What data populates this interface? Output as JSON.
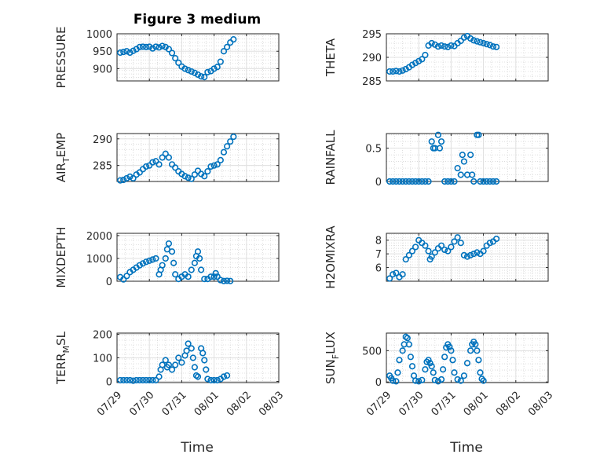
{
  "figure": {
    "title": "Figure 3 medium",
    "xlabel": "Time",
    "marker_color": "#0072BD"
  },
  "chart_data": [
    {
      "type": "scatter",
      "ylabel": "PRESSURE",
      "ylim": [
        865,
        1000
      ],
      "yticks": [
        900,
        950,
        1000
      ],
      "x_range": [
        "07/29",
        "08/03"
      ],
      "grid": true,
      "points": [
        [
          0.1,
          946
        ],
        [
          0.2,
          948
        ],
        [
          0.3,
          950
        ],
        [
          0.4,
          946
        ],
        [
          0.5,
          951
        ],
        [
          0.6,
          956
        ],
        [
          0.7,
          962
        ],
        [
          0.8,
          963
        ],
        [
          0.9,
          962
        ],
        [
          1.0,
          963
        ],
        [
          1.1,
          958
        ],
        [
          1.2,
          963
        ],
        [
          1.3,
          961
        ],
        [
          1.4,
          965
        ],
        [
          1.5,
          962
        ],
        [
          1.6,
          956
        ],
        [
          1.7,
          945
        ],
        [
          1.8,
          930
        ],
        [
          1.9,
          917
        ],
        [
          2.0,
          906
        ],
        [
          2.1,
          900
        ],
        [
          2.2,
          896
        ],
        [
          2.3,
          892
        ],
        [
          2.4,
          888
        ],
        [
          2.5,
          883
        ],
        [
          2.6,
          878
        ],
        [
          2.7,
          876
        ],
        [
          2.8,
          890
        ],
        [
          2.9,
          893
        ],
        [
          3.0,
          900
        ],
        [
          3.1,
          905
        ],
        [
          3.2,
          920
        ],
        [
          3.3,
          950
        ],
        [
          3.4,
          962
        ],
        [
          3.5,
          975
        ],
        [
          3.6,
          984
        ]
      ]
    },
    {
      "type": "scatter",
      "ylabel": "THETA",
      "ylim": [
        285,
        295
      ],
      "yticks": [
        285,
        290,
        295
      ],
      "x_range": [
        "07/29",
        "08/03"
      ],
      "grid": true,
      "points": [
        [
          0.1,
          287.0
        ],
        [
          0.2,
          287.0
        ],
        [
          0.3,
          287.1
        ],
        [
          0.4,
          287.0
        ],
        [
          0.5,
          287.2
        ],
        [
          0.6,
          287.5
        ],
        [
          0.7,
          287.9
        ],
        [
          0.8,
          288.4
        ],
        [
          0.9,
          288.8
        ],
        [
          1.0,
          289.2
        ],
        [
          1.1,
          289.6
        ],
        [
          1.2,
          290.5
        ],
        [
          1.3,
          292.5
        ],
        [
          1.4,
          293.0
        ],
        [
          1.5,
          292.7
        ],
        [
          1.6,
          292.3
        ],
        [
          1.7,
          292.5
        ],
        [
          1.8,
          292.3
        ],
        [
          1.9,
          292.2
        ],
        [
          2.0,
          292.5
        ],
        [
          2.1,
          292.4
        ],
        [
          2.2,
          293.0
        ],
        [
          2.3,
          293.5
        ],
        [
          2.4,
          294.2
        ],
        [
          2.5,
          294.5
        ],
        [
          2.6,
          294.0
        ],
        [
          2.7,
          293.6
        ],
        [
          2.8,
          293.4
        ],
        [
          2.9,
          293.2
        ],
        [
          3.0,
          293.0
        ],
        [
          3.1,
          292.8
        ],
        [
          3.2,
          292.6
        ],
        [
          3.3,
          292.3
        ],
        [
          3.4,
          292.2
        ]
      ]
    },
    {
      "type": "scatter",
      "ylabel": "AIR_TEMP",
      "ylim": [
        282,
        291
      ],
      "yticks": [
        285,
        290
      ],
      "x_range": [
        "07/29",
        "08/03"
      ],
      "grid": true,
      "points": [
        [
          0.1,
          282.2
        ],
        [
          0.2,
          282.3
        ],
        [
          0.3,
          282.6
        ],
        [
          0.4,
          282.9
        ],
        [
          0.5,
          282.6
        ],
        [
          0.6,
          283.3
        ],
        [
          0.7,
          283.7
        ],
        [
          0.8,
          284.3
        ],
        [
          0.9,
          284.8
        ],
        [
          1.0,
          285.0
        ],
        [
          1.1,
          285.6
        ],
        [
          1.2,
          285.8
        ],
        [
          1.3,
          285.2
        ],
        [
          1.4,
          286.5
        ],
        [
          1.5,
          287.2
        ],
        [
          1.6,
          286.5
        ],
        [
          1.7,
          285.2
        ],
        [
          1.8,
          284.6
        ],
        [
          1.9,
          283.9
        ],
        [
          2.0,
          283.4
        ],
        [
          2.1,
          283.0
        ],
        [
          2.2,
          282.7
        ],
        [
          2.3,
          282.5
        ],
        [
          2.4,
          283.3
        ],
        [
          2.5,
          284.0
        ],
        [
          2.6,
          283.4
        ],
        [
          2.7,
          283.0
        ],
        [
          2.8,
          283.9
        ],
        [
          2.9,
          284.8
        ],
        [
          3.0,
          285.0
        ],
        [
          3.1,
          285.2
        ],
        [
          3.2,
          286.0
        ],
        [
          3.3,
          287.5
        ],
        [
          3.4,
          288.6
        ],
        [
          3.5,
          289.5
        ],
        [
          3.6,
          290.4
        ]
      ]
    },
    {
      "type": "scatter",
      "ylabel": "RAINFALL",
      "ylim": [
        0,
        0.72
      ],
      "yticks": [
        0,
        0.5
      ],
      "x_range": [
        "07/29",
        "08/03"
      ],
      "grid": true,
      "points": [
        [
          0.1,
          0
        ],
        [
          0.2,
          0
        ],
        [
          0.3,
          0
        ],
        [
          0.4,
          0
        ],
        [
          0.5,
          0
        ],
        [
          0.6,
          0
        ],
        [
          0.7,
          0
        ],
        [
          0.8,
          0
        ],
        [
          0.9,
          0
        ],
        [
          1.0,
          0
        ],
        [
          1.1,
          0
        ],
        [
          1.2,
          0
        ],
        [
          1.3,
          0
        ],
        [
          1.4,
          0.6
        ],
        [
          1.45,
          0.5
        ],
        [
          1.5,
          0.5
        ],
        [
          1.6,
          0.7
        ],
        [
          1.65,
          0.5
        ],
        [
          1.7,
          0.6
        ],
        [
          1.8,
          0
        ],
        [
          1.9,
          0
        ],
        [
          2.0,
          0
        ],
        [
          2.1,
          0
        ],
        [
          2.2,
          0.2
        ],
        [
          2.3,
          0.1
        ],
        [
          2.35,
          0.4
        ],
        [
          2.4,
          0.3
        ],
        [
          2.5,
          0.1
        ],
        [
          2.6,
          0.4
        ],
        [
          2.65,
          0.1
        ],
        [
          2.7,
          0
        ],
        [
          2.8,
          0.7
        ],
        [
          2.85,
          0.7
        ],
        [
          2.9,
          0
        ],
        [
          3.0,
          0
        ],
        [
          3.1,
          0
        ],
        [
          3.2,
          0
        ],
        [
          3.3,
          0
        ],
        [
          3.4,
          0
        ]
      ]
    },
    {
      "type": "scatter",
      "ylabel": "MIXDEPTH",
      "ylim": [
        0,
        2100
      ],
      "yticks": [
        0,
        1000,
        2000
      ],
      "x_range": [
        "07/29",
        "08/03"
      ],
      "grid": true,
      "points": [
        [
          0.1,
          180
        ],
        [
          0.2,
          80
        ],
        [
          0.3,
          230
        ],
        [
          0.4,
          400
        ],
        [
          0.5,
          500
        ],
        [
          0.6,
          600
        ],
        [
          0.7,
          700
        ],
        [
          0.8,
          780
        ],
        [
          0.9,
          850
        ],
        [
          1.0,
          900
        ],
        [
          1.1,
          950
        ],
        [
          1.2,
          1000
        ],
        [
          1.3,
          300
        ],
        [
          1.35,
          500
        ],
        [
          1.4,
          700
        ],
        [
          1.5,
          1000
        ],
        [
          1.55,
          1400
        ],
        [
          1.6,
          1650
        ],
        [
          1.7,
          1300
        ],
        [
          1.75,
          800
        ],
        [
          1.8,
          300
        ],
        [
          1.9,
          100
        ],
        [
          2.0,
          200
        ],
        [
          2.1,
          300
        ],
        [
          2.2,
          200
        ],
        [
          2.3,
          500
        ],
        [
          2.4,
          800
        ],
        [
          2.45,
          1100
        ],
        [
          2.5,
          1300
        ],
        [
          2.55,
          1000
        ],
        [
          2.6,
          500
        ],
        [
          2.7,
          100
        ],
        [
          2.8,
          100
        ],
        [
          2.9,
          200
        ],
        [
          3.0,
          200
        ],
        [
          3.05,
          350
        ],
        [
          3.1,
          200
        ],
        [
          3.2,
          50
        ],
        [
          3.3,
          10
        ],
        [
          3.4,
          20
        ],
        [
          3.5,
          10
        ]
      ]
    },
    {
      "type": "scatter",
      "ylabel": "H2OMIXRA",
      "ylim": [
        5,
        8.5
      ],
      "yticks": [
        6,
        7,
        8
      ],
      "x_range": [
        "07/29",
        "08/03"
      ],
      "grid": true,
      "points": [
        [
          0.1,
          5.2
        ],
        [
          0.2,
          5.5
        ],
        [
          0.3,
          5.6
        ],
        [
          0.4,
          5.3
        ],
        [
          0.5,
          5.5
        ],
        [
          0.6,
          6.6
        ],
        [
          0.7,
          6.9
        ],
        [
          0.8,
          7.2
        ],
        [
          0.9,
          7.5
        ],
        [
          1.0,
          8.0
        ],
        [
          1.1,
          7.8
        ],
        [
          1.2,
          7.6
        ],
        [
          1.3,
          7.2
        ],
        [
          1.35,
          6.6
        ],
        [
          1.4,
          6.8
        ],
        [
          1.5,
          7.1
        ],
        [
          1.6,
          7.4
        ],
        [
          1.7,
          7.6
        ],
        [
          1.8,
          7.3
        ],
        [
          1.9,
          7.2
        ],
        [
          2.0,
          7.5
        ],
        [
          2.1,
          7.9
        ],
        [
          2.2,
          8.2
        ],
        [
          2.3,
          7.8
        ],
        [
          2.4,
          6.9
        ],
        [
          2.5,
          6.8
        ],
        [
          2.6,
          6.9
        ],
        [
          2.7,
          7.0
        ],
        [
          2.8,
          7.1
        ],
        [
          2.9,
          7.0
        ],
        [
          3.0,
          7.2
        ],
        [
          3.1,
          7.6
        ],
        [
          3.2,
          7.8
        ],
        [
          3.3,
          7.9
        ],
        [
          3.4,
          8.1
        ]
      ]
    },
    {
      "type": "scatter",
      "ylabel": "TERR_MSL",
      "ylim": [
        -5,
        205
      ],
      "yticks": [
        0,
        100,
        200
      ],
      "x_range": [
        "07/29",
        "08/03"
      ],
      "grid": true,
      "points": [
        [
          0.1,
          5
        ],
        [
          0.2,
          5
        ],
        [
          0.3,
          5
        ],
        [
          0.4,
          5
        ],
        [
          0.5,
          3
        ],
        [
          0.6,
          5
        ],
        [
          0.7,
          5
        ],
        [
          0.8,
          5
        ],
        [
          0.9,
          5
        ],
        [
          1.0,
          5
        ],
        [
          1.1,
          5
        ],
        [
          1.2,
          5
        ],
        [
          1.3,
          20
        ],
        [
          1.35,
          50
        ],
        [
          1.4,
          70
        ],
        [
          1.5,
          90
        ],
        [
          1.55,
          60
        ],
        [
          1.6,
          70
        ],
        [
          1.7,
          50
        ],
        [
          1.8,
          70
        ],
        [
          1.9,
          100
        ],
        [
          2.0,
          80
        ],
        [
          2.1,
          110
        ],
        [
          2.15,
          130
        ],
        [
          2.2,
          160
        ],
        [
          2.3,
          140
        ],
        [
          2.35,
          100
        ],
        [
          2.4,
          60
        ],
        [
          2.45,
          25
        ],
        [
          2.5,
          20
        ],
        [
          2.6,
          140
        ],
        [
          2.65,
          120
        ],
        [
          2.7,
          90
        ],
        [
          2.75,
          50
        ],
        [
          2.8,
          10
        ],
        [
          2.9,
          5
        ],
        [
          3.0,
          5
        ],
        [
          3.1,
          5
        ],
        [
          3.2,
          10
        ],
        [
          3.3,
          20
        ],
        [
          3.4,
          25
        ]
      ]
    },
    {
      "type": "scatter",
      "ylabel": "SUN_FLUX",
      "ylim": [
        -10,
        780
      ],
      "yticks": [
        0,
        500
      ],
      "x_range": [
        "07/29",
        "08/03"
      ],
      "grid": true,
      "points": [
        [
          0.1,
          100
        ],
        [
          0.15,
          60
        ],
        [
          0.2,
          20
        ],
        [
          0.3,
          10
        ],
        [
          0.35,
          150
        ],
        [
          0.4,
          350
        ],
        [
          0.5,
          500
        ],
        [
          0.55,
          600
        ],
        [
          0.6,
          720
        ],
        [
          0.65,
          700
        ],
        [
          0.7,
          600
        ],
        [
          0.75,
          400
        ],
        [
          0.8,
          250
        ],
        [
          0.85,
          100
        ],
        [
          0.9,
          20
        ],
        [
          1.0,
          10
        ],
        [
          1.1,
          30
        ],
        [
          1.2,
          200
        ],
        [
          1.25,
          320
        ],
        [
          1.3,
          350
        ],
        [
          1.35,
          300
        ],
        [
          1.4,
          250
        ],
        [
          1.45,
          150
        ],
        [
          1.5,
          30
        ],
        [
          1.6,
          10
        ],
        [
          1.7,
          40
        ],
        [
          1.75,
          200
        ],
        [
          1.8,
          400
        ],
        [
          1.85,
          550
        ],
        [
          1.9,
          600
        ],
        [
          1.95,
          560
        ],
        [
          2.0,
          500
        ],
        [
          2.05,
          350
        ],
        [
          2.1,
          150
        ],
        [
          2.2,
          40
        ],
        [
          2.3,
          20
        ],
        [
          2.4,
          100
        ],
        [
          2.5,
          300
        ],
        [
          2.6,
          500
        ],
        [
          2.65,
          600
        ],
        [
          2.7,
          640
        ],
        [
          2.75,
          600
        ],
        [
          2.8,
          500
        ],
        [
          2.85,
          350
        ],
        [
          2.9,
          150
        ],
        [
          2.95,
          50
        ],
        [
          3.0,
          20
        ]
      ]
    }
  ]
}
